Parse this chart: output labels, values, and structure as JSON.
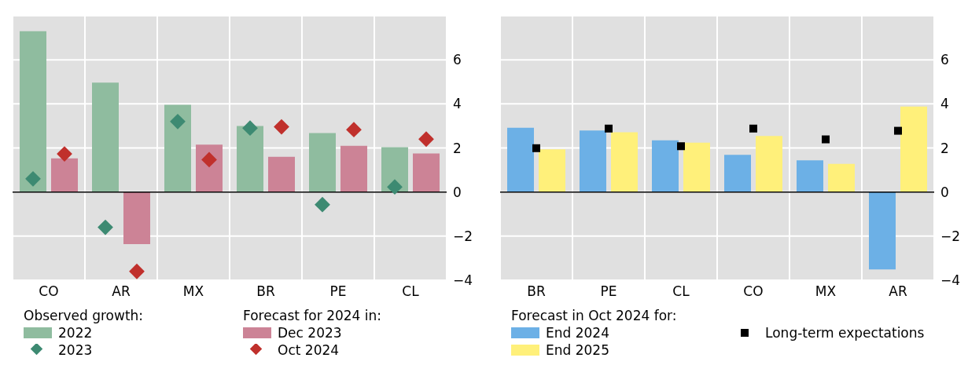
{
  "chart_data": [
    {
      "type": "bar",
      "legend_title": "Observed growth:",
      "annotations": [
        "Forecast for 2024 in:"
      ],
      "categories": [
        "CO",
        "AR",
        "MX",
        "BR",
        "PE",
        "CL"
      ],
      "series": [
        {
          "name": "2022",
          "color": "#8fbc9f",
          "values": [
            7.3,
            4.96,
            3.96,
            3.0,
            2.68,
            2.04
          ]
        },
        {
          "name": "Dec 2023",
          "color": "#cc8396",
          "values": [
            1.53,
            -2.36,
            2.15,
            1.6,
            2.1,
            1.75
          ]
        },
        {
          "name": "2023",
          "type": "scatter",
          "marker": "diamond",
          "color": "#3d8a72",
          "values": [
            0.6,
            -1.6,
            3.2,
            2.9,
            -0.57,
            0.23
          ]
        },
        {
          "name": "Oct 2024",
          "type": "scatter",
          "marker": "diamond",
          "color": "#c0302c",
          "values": [
            1.73,
            -3.6,
            1.47,
            2.96,
            2.83,
            2.4
          ]
        }
      ],
      "ylim": [
        -4,
        8
      ],
      "yticks": [
        -4,
        -2,
        0,
        2,
        4,
        6
      ],
      "grid": true,
      "legend": "bottom"
    },
    {
      "type": "bar",
      "legend_title": "Forecast in Oct 2024 for:",
      "categories": [
        "BR",
        "PE",
        "CL",
        "CO",
        "MX",
        "AR"
      ],
      "series": [
        {
          "name": "End 2024",
          "color": "#6cb0e6",
          "values": [
            2.92,
            2.79,
            2.35,
            1.69,
            1.44,
            -3.51
          ]
        },
        {
          "name": "End 2025",
          "color": "#fff07a",
          "values": [
            1.94,
            2.71,
            2.24,
            2.54,
            1.28,
            3.88
          ]
        },
        {
          "name": "Long-term expectations",
          "type": "scatter",
          "marker": "square",
          "color": "#000000",
          "values": [
            1.99,
            2.88,
            2.08,
            2.88,
            2.39,
            2.78
          ]
        }
      ],
      "ylim": [
        -4,
        8
      ],
      "yticks": [
        -4,
        -2,
        0,
        2,
        4,
        6
      ],
      "grid": true,
      "legend": "bottom"
    }
  ]
}
